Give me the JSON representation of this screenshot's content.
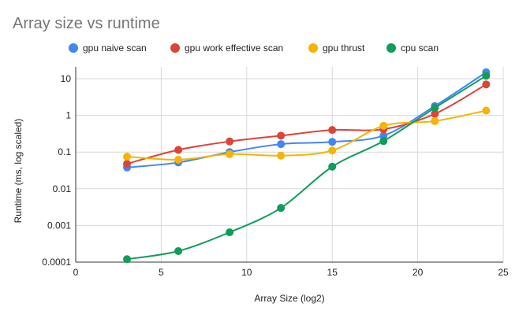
{
  "chart_data": {
    "type": "line",
    "title": "Array size vs runtime",
    "xlabel": "Array Size (log2)",
    "ylabel": "Runtime (ms, log scaled)",
    "x": [
      3,
      6,
      9,
      12,
      15,
      18,
      21,
      24
    ],
    "xlim": [
      0,
      25
    ],
    "xticks": [
      0,
      5,
      10,
      15,
      20,
      25
    ],
    "yscale": "log",
    "ylim": [
      0.0001,
      20
    ],
    "yticks": [
      {
        "value": 0.0001,
        "label": "0.0001"
      },
      {
        "value": 0.001,
        "label": "0.001"
      },
      {
        "value": 0.01,
        "label": "0.01"
      },
      {
        "value": 0.1,
        "label": "0.1"
      },
      {
        "value": 1,
        "label": "1"
      },
      {
        "value": 10,
        "label": "10"
      }
    ],
    "grid": true,
    "legend_position": "top",
    "series": [
      {
        "name": "gpu naive scan",
        "color": "#4285F4",
        "values": [
          0.038,
          0.052,
          0.1,
          0.165,
          0.19,
          0.28,
          1.8,
          15
        ]
      },
      {
        "name": "gpu work effective scan",
        "color": "#DB4437",
        "values": [
          0.048,
          0.115,
          0.195,
          0.28,
          0.4,
          0.42,
          1.1,
          7
        ]
      },
      {
        "name": "gpu thrust",
        "color": "#F4B400",
        "values": [
          0.075,
          0.062,
          0.088,
          0.08,
          0.11,
          0.52,
          0.7,
          1.35
        ]
      },
      {
        "name": "cpu scan",
        "color": "#0F9D58",
        "values": [
          0.00012,
          0.0002,
          0.00065,
          0.003,
          0.04,
          0.2,
          1.6,
          12
        ]
      }
    ]
  }
}
